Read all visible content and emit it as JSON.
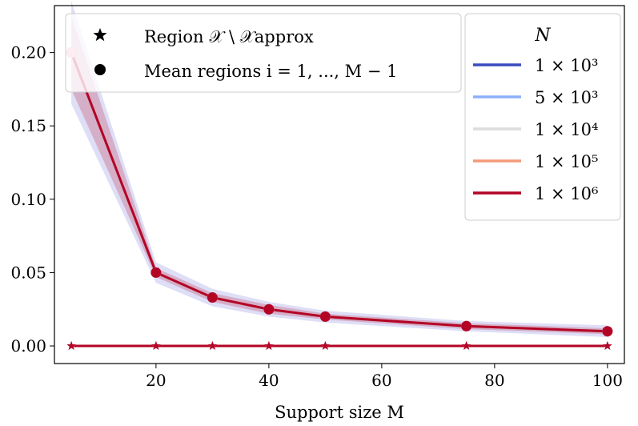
{
  "chart_data": {
    "type": "line",
    "title": "",
    "xlabel": "Support size M",
    "ylabel": "",
    "xlim": [
      2,
      103
    ],
    "ylim": [
      -0.012,
      0.232
    ],
    "xticks": [
      20,
      40,
      60,
      80,
      100
    ],
    "xtick_labels": [
      "20",
      "40",
      "60",
      "80",
      "100"
    ],
    "yticks": [
      0.0,
      0.05,
      0.1,
      0.15,
      0.2
    ],
    "ytick_labels": [
      "0.00",
      "0.05",
      "0.10",
      "0.15",
      "0.20"
    ],
    "x": [
      5,
      20,
      30,
      40,
      50,
      75,
      100
    ],
    "marker_legend": [
      {
        "marker": "star",
        "label": "Region 𝒳 \\ 𝒳approx"
      },
      {
        "marker": "circle",
        "label": "Mean regions i = 1, ..., M − 1"
      }
    ],
    "legend_title": "N",
    "series": [
      {
        "name": "1 × 10³",
        "color": "#3b4cc0",
        "mean_values": [
          0.2,
          0.05,
          0.033,
          0.025,
          0.02,
          0.0135,
          0.01
        ],
        "region_values": [
          0,
          0,
          0,
          0,
          0,
          0,
          0
        ]
      },
      {
        "name": "5 × 10³",
        "color": "#8db0fe",
        "mean_values": [
          0.2,
          0.05,
          0.033,
          0.025,
          0.02,
          0.0135,
          0.01
        ],
        "region_values": [
          0,
          0,
          0,
          0,
          0,
          0,
          0
        ]
      },
      {
        "name": "1 × 10⁴",
        "color": "#dddcdc",
        "mean_values": [
          0.2,
          0.05,
          0.033,
          0.025,
          0.02,
          0.0135,
          0.01
        ],
        "region_values": [
          0,
          0,
          0,
          0,
          0,
          0,
          0
        ]
      },
      {
        "name": "1 × 10⁵",
        "color": "#f49a7b",
        "mean_values": [
          0.2,
          0.05,
          0.033,
          0.025,
          0.02,
          0.0135,
          0.01
        ],
        "region_values": [
          0,
          0,
          0,
          0,
          0,
          0,
          0
        ]
      },
      {
        "name": "1 × 10⁶",
        "color": "#b40426",
        "mean_values": [
          0.2,
          0.05,
          0.033,
          0.025,
          0.02,
          0.0135,
          0.01
        ],
        "region_values": [
          0,
          0,
          0,
          0,
          0,
          0,
          0
        ]
      }
    ],
    "band": {
      "upper": [
        0.235,
        0.057,
        0.039,
        0.03,
        0.024,
        0.017,
        0.014
      ],
      "lower": [
        0.165,
        0.043,
        0.027,
        0.02,
        0.016,
        0.01,
        0.006
      ],
      "inner_upper": [
        0.225,
        0.053,
        0.036,
        0.028,
        0.022,
        0.0155,
        0.012
      ],
      "inner_lower": [
        0.175,
        0.047,
        0.03,
        0.022,
        0.018,
        0.0115,
        0.008
      ]
    },
    "legend_placement": "upper-left and upper-right"
  }
}
